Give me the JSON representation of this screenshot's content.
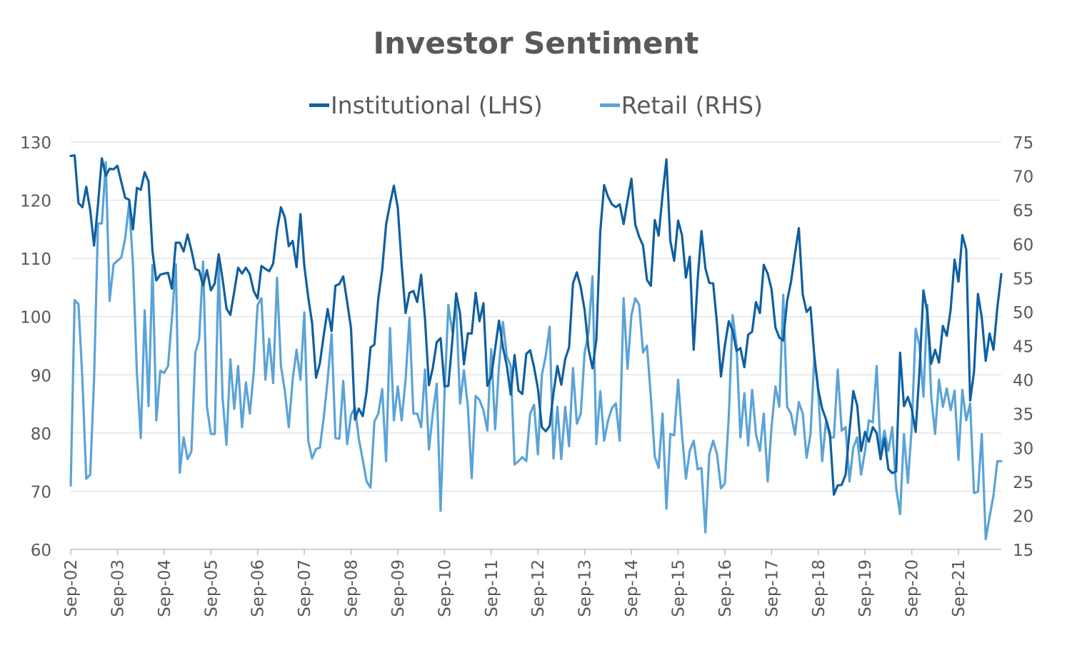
{
  "chart_data": {
    "type": "line",
    "title": "Investor Sentiment",
    "x_tick_labels": [
      "Sep-02",
      "Sep-03",
      "Sep-04",
      "Sep-05",
      "Sep-06",
      "Sep-07",
      "Sep-08",
      "Sep-09",
      "Sep-10",
      "Sep-11",
      "Sep-12",
      "Sep-13",
      "Sep-14",
      "Sep-15",
      "Sep-16",
      "Sep-17",
      "Sep-18",
      "Sep-19",
      "Sep-20",
      "Sep-21"
    ],
    "x_start": "Sep-02",
    "x_frequency": "monthly",
    "left_axis": {
      "ylim": [
        60,
        130
      ],
      "ticks": [
        130,
        120,
        110,
        100,
        90,
        80,
        70,
        60
      ]
    },
    "right_axis": {
      "ylim": [
        15,
        75
      ],
      "ticks": [
        75,
        70,
        65,
        60,
        55,
        50,
        45,
        40,
        35,
        30,
        25,
        20,
        15
      ]
    },
    "grid": true,
    "legend": "top-center",
    "series": [
      {
        "name": "Institutional (LHS)",
        "axis": "left",
        "color": "#0f5fa0",
        "values": [
          127.6,
          127.7,
          119.5,
          118.8,
          122.3,
          118.3,
          112.2,
          119.2,
          127.2,
          124.2,
          125.4,
          125.3,
          125.9,
          123.1,
          120.4,
          120.1,
          115.0,
          122.1,
          121.8,
          124.8,
          123.2,
          111.2,
          106.2,
          107.2,
          107.4,
          107.5,
          104.8,
          112.7,
          112.7,
          111.2,
          114.1,
          111.4,
          108.2,
          107.9,
          105.3,
          108.0,
          104.5,
          105.7,
          110.7,
          106.5,
          101.4,
          100.3,
          104.3,
          108.4,
          107.4,
          108.4,
          107.3,
          104.4,
          103.1,
          108.7,
          108.2,
          107.8,
          109.1,
          114.8,
          118.8,
          117.0,
          112.1,
          113.0,
          108.5,
          117.6,
          108.7,
          103.3,
          98.9,
          89.5,
          92.0,
          96.9,
          101.3,
          97.5,
          105.3,
          105.6,
          106.9,
          102.5,
          98.0,
          82.3,
          84.2,
          82.9,
          87.1,
          94.7,
          95.2,
          103.1,
          108.1,
          115.8,
          119.4,
          122.5,
          118.7,
          108.9,
          100.6,
          104.1,
          104.4,
          102.5,
          107.2,
          99.5,
          88.2,
          91.2,
          95.6,
          96.3,
          88.0,
          88.1,
          95.8,
          104.0,
          100.5,
          91.8,
          97.1,
          97.1,
          104.1,
          99.2,
          102.3,
          88.1,
          89.7,
          94.5,
          99.3,
          94.7,
          91.6,
          86.6,
          93.4,
          87.3,
          86.7,
          93.6,
          94.2,
          91.3,
          87.6,
          81.0,
          80.3,
          81.2,
          86.9,
          91.5,
          88.3,
          92.7,
          94.7,
          105.7,
          107.6,
          105.0,
          101.1,
          94.4,
          91.1,
          96.0,
          114.6,
          122.6,
          120.6,
          119.3,
          118.8,
          119.3,
          115.9,
          119.9,
          123.7,
          115.8,
          113.7,
          112.2,
          106.3,
          105.3,
          116.6,
          113.9,
          120.9,
          127.0,
          113.0,
          109.6,
          116.5,
          114.0,
          106.7,
          110.3,
          94.3,
          106.2,
          114.7,
          108.3,
          105.8,
          105.7,
          98.7,
          89.7,
          95.0,
          99.2,
          97.6,
          94.1,
          94.6,
          91.3,
          96.9,
          97.4,
          102.5,
          100.6,
          108.9,
          107.4,
          104.7,
          98.1,
          96.4,
          95.9,
          102.7,
          106.0,
          110.8,
          115.2,
          103.8,
          100.8,
          101.6,
          93.1,
          87.4,
          84.2,
          82.3,
          79.9,
          69.4,
          71.0,
          71.1,
          72.8,
          80.2,
          87.2,
          84.7,
          76.9,
          80.2,
          78.5,
          81.0,
          80.0,
          75.5,
          79.1,
          73.8,
          73.1,
          73.4,
          93.8,
          84.6,
          86.2,
          84.1,
          80.2,
          90.8,
          104.5,
          100.7,
          91.9,
          94.3,
          92.1,
          98.4,
          96.7,
          101.2,
          109.8,
          106.0,
          114.0,
          111.5,
          85.6,
          90.5,
          103.9,
          99.8,
          92.4,
          97.1,
          94.3,
          101.6,
          107.3
        ]
      },
      {
        "name": "Retail (RHS)",
        "axis": "right",
        "color": "#5ba3d6",
        "values": [
          24.4,
          51.7,
          51.1,
          40.0,
          25.4,
          26.0,
          40.0,
          63.0,
          63.0,
          72.0,
          51.6,
          57.0,
          57.5,
          58.0,
          60.8,
          66.0,
          57.0,
          41.0,
          31.4,
          50.2,
          36.1,
          56.9,
          34.0,
          41.3,
          41.0,
          42.0,
          49.0,
          57.0,
          26.3,
          31.5,
          28.3,
          29.4,
          44.0,
          46.0,
          57.4,
          36.0,
          32.0,
          32.0,
          57.1,
          37.4,
          30.4,
          43.0,
          35.7,
          42.0,
          33.0,
          39.6,
          35.0,
          41.0,
          51.0,
          52.0,
          40.0,
          46.0,
          39.5,
          55.0,
          42.0,
          38.3,
          33.0,
          40.0,
          44.4,
          40.0,
          49.9,
          31.0,
          28.4,
          29.8,
          30.0,
          34.5,
          40.0,
          46.7,
          31.4,
          31.3,
          39.8,
          30.5,
          34.8,
          35.9,
          31.3,
          28.2,
          25.0,
          24.1,
          33.8,
          35.0,
          38.6,
          28.0,
          47.6,
          34.0,
          39.0,
          34.0,
          40.0,
          49.1,
          35.0,
          35.0,
          33.0,
          41.5,
          29.7,
          35.0,
          39.4,
          20.7,
          38.0,
          51.0,
          47.0,
          51.0,
          36.5,
          41.4,
          36.0,
          25.5,
          37.6,
          37.0,
          35.5,
          32.5,
          44.5,
          32.7,
          42.0,
          48.5,
          43.5,
          42.0,
          27.5,
          28.0,
          28.6,
          28.0,
          35.0,
          36.3,
          29.0,
          40.7,
          43.5,
          47.8,
          28.4,
          36.0,
          28.3,
          36.0,
          30.2,
          41.7,
          33.5,
          35.0,
          44.0,
          47.0,
          55.2,
          30.5,
          38.3,
          31.0,
          34.0,
          35.8,
          36.5,
          31.0,
          52.0,
          41.6,
          49.5,
          52.0,
          51.0,
          44.0,
          45.0,
          37.5,
          28.7,
          27.0,
          35.0,
          21.0,
          32.0,
          31.8,
          40.0,
          32.0,
          25.4,
          29.5,
          31.0,
          26.8,
          27.0,
          17.5,
          29.0,
          31.0,
          29.0,
          24.0,
          24.7,
          34.5,
          49.5,
          45.0,
          31.5,
          38.0,
          30.3,
          38.5,
          32.0,
          29.5,
          35.0,
          25.0,
          33.0,
          39.0,
          36.0,
          52.5,
          36.0,
          35.0,
          31.9,
          36.7,
          35.0,
          28.5,
          32.0,
          43.5,
          38.0,
          28.0,
          34.0,
          31.5,
          31.5,
          41.5,
          32.5,
          33.0,
          25.0,
          30.0,
          31.5,
          26.0,
          29.5,
          34.0,
          33.7,
          42.0,
          29.5,
          32.5,
          29.5,
          33.0,
          24.0,
          20.2,
          32.0,
          24.8,
          33.0,
          47.5,
          45.0,
          37.5,
          51.0,
          37.5,
          32.0,
          40.0,
          36.0,
          38.7,
          35.5,
          38.4,
          28.2,
          38.5,
          34.0,
          36.5,
          23.3,
          23.5,
          32.0,
          16.5,
          19.8,
          23.0,
          28.0,
          28.0
        ]
      }
    ]
  }
}
